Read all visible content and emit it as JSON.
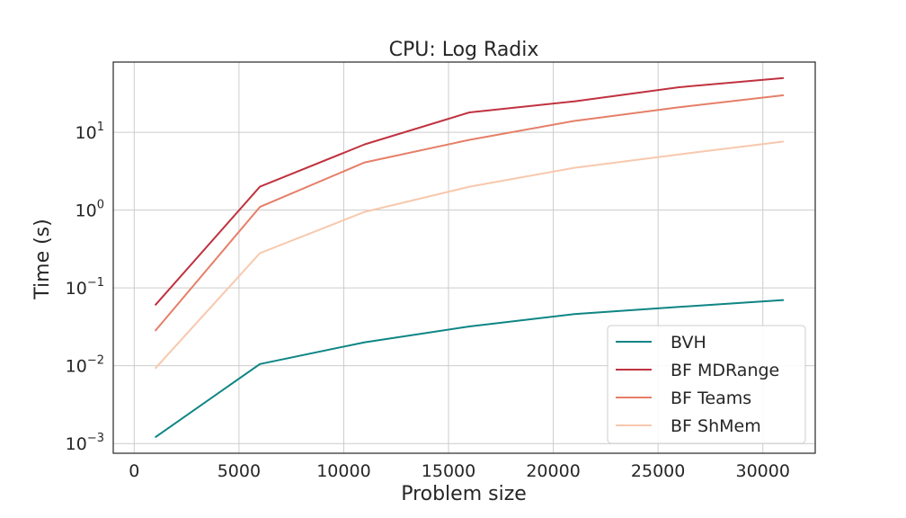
{
  "chart_data": {
    "type": "line",
    "title": "CPU: Log Radix",
    "xlabel": "Problem size",
    "ylabel": "Time (s)",
    "y_scale": "log",
    "xlim": [
      -1000,
      32500
    ],
    "ylim": [
      0.00075,
      80
    ],
    "grid": true,
    "legend_position": "lower-right",
    "x_ticks": [
      {
        "value": 0,
        "label": "0"
      },
      {
        "value": 5000,
        "label": "5000"
      },
      {
        "value": 10000,
        "label": "10000"
      },
      {
        "value": 15000,
        "label": "15000"
      },
      {
        "value": 20000,
        "label": "20000"
      },
      {
        "value": 25000,
        "label": "25000"
      },
      {
        "value": 30000,
        "label": "30000"
      }
    ],
    "y_ticks": [
      {
        "value": 0.001,
        "base": "10",
        "exp": "−3"
      },
      {
        "value": 0.01,
        "base": "10",
        "exp": "−2"
      },
      {
        "value": 0.1,
        "base": "10",
        "exp": "−1"
      },
      {
        "value": 1,
        "base": "10",
        "exp": "0"
      },
      {
        "value": 10,
        "base": "10",
        "exp": "1"
      }
    ],
    "x": [
      1000,
      6000,
      11000,
      16000,
      21000,
      26000,
      31000
    ],
    "series": [
      {
        "name": "BVH",
        "color": "#0e8585",
        "values": [
          0.0012,
          0.0105,
          0.02,
          0.032,
          0.046,
          0.057,
          0.07
        ]
      },
      {
        "name": "BF MDRange",
        "color": "#c0323f",
        "values": [
          0.06,
          2.0,
          7.0,
          18.0,
          25.0,
          38.0,
          50.0
        ]
      },
      {
        "name": "BF Teams",
        "color": "#e57f68",
        "values": [
          0.028,
          1.1,
          4.1,
          8.0,
          14.0,
          21.0,
          30.0
        ]
      },
      {
        "name": "BF ShMem",
        "color": "#f8c8ad",
        "values": [
          0.0092,
          0.28,
          0.95,
          2.0,
          3.5,
          5.2,
          7.6
        ]
      }
    ]
  }
}
